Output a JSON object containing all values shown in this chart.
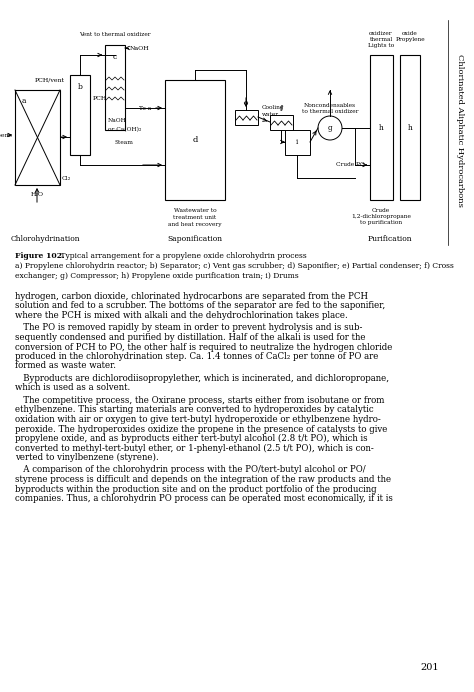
{
  "page_number": "201",
  "sidebar_text": "Chlorinated Aliphatic Hydrocarbons",
  "figure_caption_bold": "Figure 102.",
  "figure_caption_normal": " Typical arrangement for a propylene oxide chlorohydrin process",
  "figure_caption_line2": "a) Propylene chlorohydrin reactor; b) Separator; c) Vent gas scrubber; d) Saponifier; e) Partial condenser; f) Cross",
  "figure_caption_line3": "exchanger; g) Compressor; h) Propylene oxide purification train; i) Drums",
  "section_labels": [
    "Chlorohydrination",
    "Saponification",
    "Purification"
  ],
  "p1_lines": [
    "hydrogen, carbon dioxide, chlorinated hydrocarbons are separated from the PCH",
    "solution and fed to a scrubber. The bottoms of the separator are fed to the saponifier,",
    "where the PCH is mixed with alkali and the dehydrochlorination takes place."
  ],
  "p2_lines": [
    "   The PO is removed rapidly by steam in order to prevent hydrolysis and is sub-",
    "sequently condensed and purified by distillation. Half of the alkali is used for the",
    "conversion of PCH to PO, the other half is required to neutralize the hydrogen chloride",
    "produced in the chlorohydrination step. Ca. 1.4 tonnes of CaCl₂ per tonne of PO are",
    "formed as waste water."
  ],
  "p3_lines": [
    "   Byproducts are dichlorodiisopropylether, which is incinerated, and dichloropropane,",
    "which is used as a solvent."
  ],
  "p4_lines": [
    "   The competitive process, the Oxirane process, starts either from isobutane or from",
    "ethylbenzene. This starting materials are converted to hydroperoxides by catalytic",
    "oxidation with air or oxygen to give tert-butyl hydroperoxide or ethylbenzene hydro-",
    "peroxide. The hydroperoxides oxidize the propene in the presence of catalysts to give",
    "propylene oxide, and as byproducts either tert-butyl alcohol (2.8 t/t PO), which is",
    "converted to methyl-tert-butyl ether, or 1-phenyl-ethanol (2.5 t/t PO), which is con-",
    "verted to vinylbenzene (styrene)."
  ],
  "p5_lines": [
    "   A comparison of the chlorohydrin process with the PO/tert-butyl alcohol or PO/",
    "styrene process is difficult and depends on the integration of the raw products and the",
    "byproducts within the production site and on the product portfolio of the producing",
    "companies. Thus, a chlorohydrin PO process can be operated most economically, if it is"
  ],
  "bg_color": "#ffffff"
}
